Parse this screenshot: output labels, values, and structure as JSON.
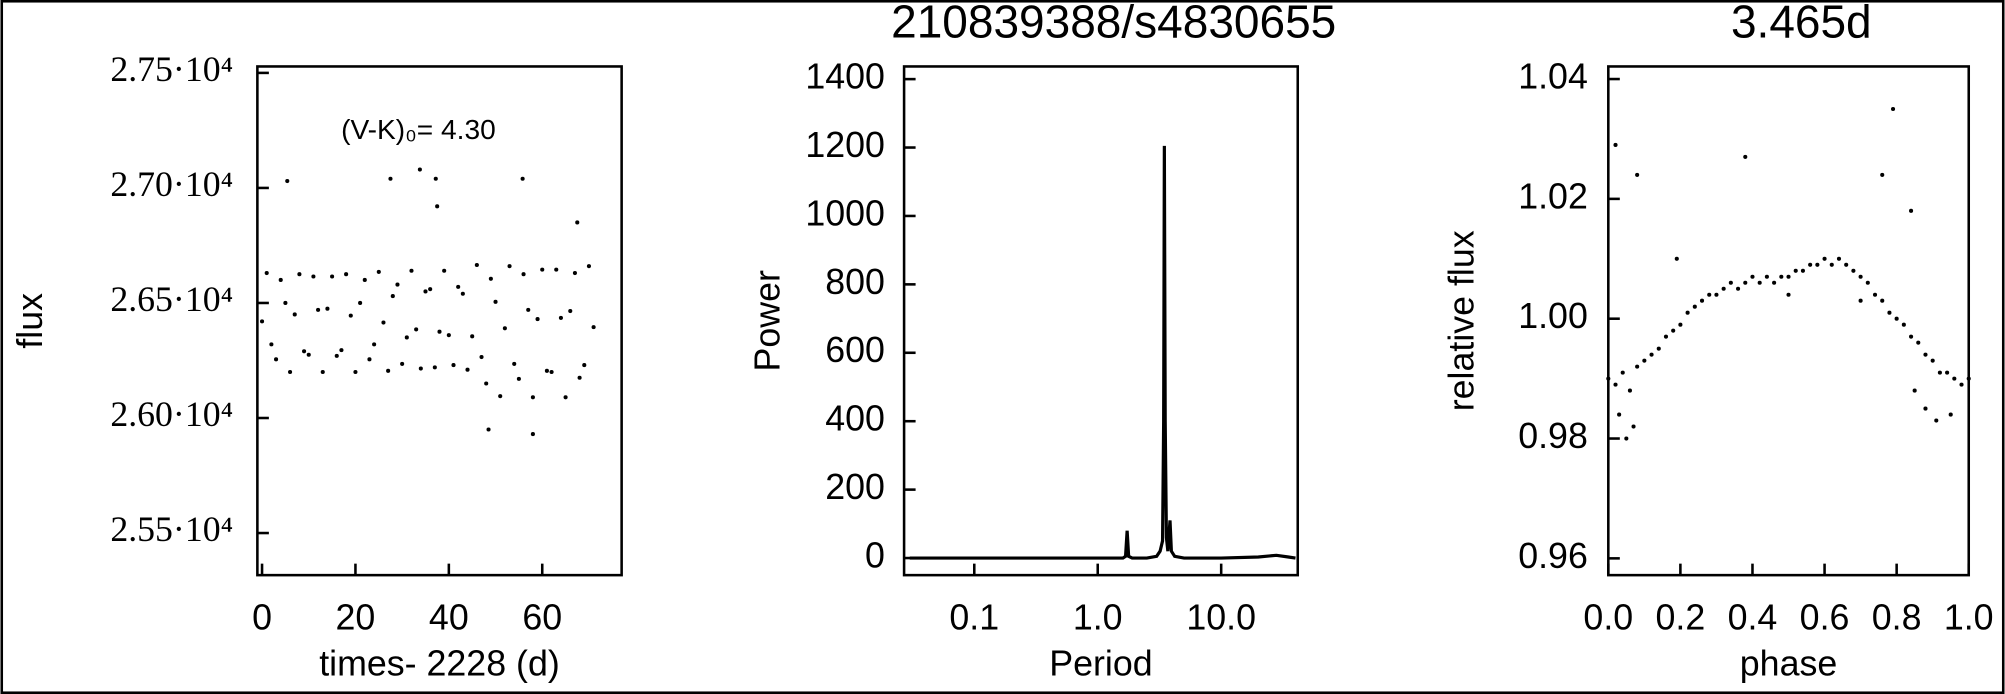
{
  "chart_data": [
    {
      "type": "scatter",
      "ylabel": "flux",
      "xlabel": "times- 2228 (d)",
      "annotation": "(V-K)₀= 4.30",
      "color": "#000000",
      "xlim": [
        -1,
        77
      ],
      "xticks": [
        0,
        20,
        40,
        60
      ],
      "ylim": [
        25317,
        27528
      ],
      "yticks": [
        {
          "value": 25500,
          "label": "2.55·10⁴"
        },
        {
          "value": 26000,
          "label": "2.60·10⁴"
        },
        {
          "value": 26500,
          "label": "2.65·10⁴"
        },
        {
          "value": 27000,
          "label": "2.70·10⁴"
        },
        {
          "value": 27500,
          "label": "2.75·10⁴"
        }
      ],
      "x": [
        0,
        1,
        2,
        3,
        4,
        5,
        6,
        7,
        8,
        9,
        10,
        11,
        12,
        13,
        14,
        15,
        16,
        17,
        18,
        19,
        20,
        21,
        22,
        23,
        24,
        25,
        26,
        27,
        28,
        29,
        30,
        31,
        32,
        33,
        34,
        35,
        36,
        37,
        38,
        39,
        40,
        41,
        42,
        43,
        44,
        45,
        46,
        47,
        48,
        49,
        50,
        51,
        52,
        53,
        54,
        55,
        56,
        57,
        58,
        59,
        60,
        61,
        62,
        63,
        64,
        65,
        66,
        67,
        68,
        69,
        70,
        71,
        5.4,
        27.5,
        33.8,
        37.2,
        55.8,
        67.5,
        37.5,
        48.5,
        58
      ],
      "values": [
        26420,
        26630,
        26320,
        26255,
        26600,
        26500,
        26200,
        26450,
        26625,
        26290,
        26275,
        26615,
        26470,
        26200,
        26475,
        26615,
        26270,
        26295,
        26625,
        26445,
        26200,
        26500,
        26600,
        26255,
        26320,
        26635,
        26415,
        26205,
        26530,
        26580,
        26235,
        26350,
        26640,
        26385,
        26215,
        26550,
        26560,
        26220,
        26375,
        26640,
        26360,
        26230,
        26570,
        26540,
        26210,
        26355,
        26665,
        26265,
        26150,
        26605,
        26505,
        26095,
        26390,
        26660,
        26235,
        26170,
        26625,
        26470,
        26090,
        26430,
        26645,
        26205,
        26200,
        26645,
        26435,
        26090,
        26465,
        26630,
        26175,
        26230,
        26660,
        26395,
        27030,
        27040,
        27080,
        27040,
        27040,
        26850,
        26920,
        25950,
        25930
      ]
    },
    {
      "type": "line",
      "title": "210839388/s4830655",
      "ylabel": "Power",
      "xlabel": "Period",
      "color": "#000000",
      "xlog": true,
      "xlim": [
        0.027,
        41.7
      ],
      "xticks": [
        0.1,
        {
          "value": 1,
          "label": "1.0"
        },
        {
          "value": 10,
          "label": "10.0"
        }
      ],
      "ylim": [
        -50,
        1437
      ],
      "yticks": [
        0,
        200,
        400,
        600,
        800,
        1000,
        1200,
        1400
      ],
      "x": [
        0.03,
        0.1,
        0.5,
        1.0,
        1.6,
        1.68,
        1.73,
        1.78,
        1.9,
        2.5,
        3.0,
        3.2,
        3.35,
        3.42,
        3.465,
        3.52,
        3.6,
        3.7,
        3.85,
        3.95,
        4.2,
        5,
        10,
        20,
        28,
        35,
        40
      ],
      "values": [
        0,
        0,
        0,
        0,
        0,
        5,
        80,
        5,
        0,
        0,
        5,
        20,
        50,
        400,
        1205,
        400,
        60,
        20,
        110,
        20,
        5,
        0,
        0,
        3,
        8,
        3,
        0
      ]
    },
    {
      "type": "scatter",
      "title": "3.465d",
      "ylabel": "relative flux",
      "xlabel": "phase",
      "color": "#000000",
      "xlim": [
        0,
        1
      ],
      "xticks": [
        {
          "value": 0,
          "label": "0.0"
        },
        0.2,
        0.4,
        0.6,
        0.8,
        {
          "value": 1,
          "label": "1.0"
        }
      ],
      "ylim": [
        0.9572,
        1.0421
      ],
      "yticks": [
        0.96,
        0.98,
        {
          "value": 1,
          "label": "1.00"
        },
        1.02,
        1.04
      ],
      "x": [
        0.0,
        0.02,
        0.04,
        0.06,
        0.08,
        0.1,
        0.12,
        0.14,
        0.16,
        0.18,
        0.2,
        0.22,
        0.24,
        0.26,
        0.28,
        0.3,
        0.32,
        0.34,
        0.36,
        0.38,
        0.4,
        0.42,
        0.44,
        0.46,
        0.48,
        0.5,
        0.52,
        0.54,
        0.56,
        0.58,
        0.6,
        0.62,
        0.64,
        0.66,
        0.68,
        0.7,
        0.72,
        0.74,
        0.76,
        0.78,
        0.8,
        0.82,
        0.84,
        0.86,
        0.88,
        0.9,
        0.92,
        0.94,
        0.96,
        0.98,
        1.0,
        0.03,
        0.05,
        0.07,
        0.85,
        0.88,
        0.91,
        0.95,
        0.5,
        0.7,
        0.02,
        0.08,
        0.38,
        0.79,
        0.76,
        0.84,
        0.19
      ],
      "values": [
        0.99,
        0.989,
        0.991,
        0.988,
        0.992,
        0.993,
        0.994,
        0.995,
        0.997,
        0.998,
        0.999,
        1.001,
        1.002,
        1.003,
        1.004,
        1.004,
        1.005,
        1.006,
        1.005,
        1.006,
        1.007,
        1.006,
        1.007,
        1.006,
        1.007,
        1.007,
        1.008,
        1.008,
        1.009,
        1.009,
        1.01,
        1.009,
        1.01,
        1.009,
        1.008,
        1.007,
        1.006,
        1.004,
        1.003,
        1.001,
        1.0,
        0.999,
        0.997,
        0.996,
        0.994,
        0.993,
        0.991,
        0.991,
        0.99,
        0.989,
        0.99,
        0.984,
        0.98,
        0.982,
        0.988,
        0.985,
        0.983,
        0.984,
        1.004,
        1.003,
        1.029,
        1.024,
        1.027,
        1.035,
        1.024,
        1.018,
        1.01
      ]
    }
  ]
}
